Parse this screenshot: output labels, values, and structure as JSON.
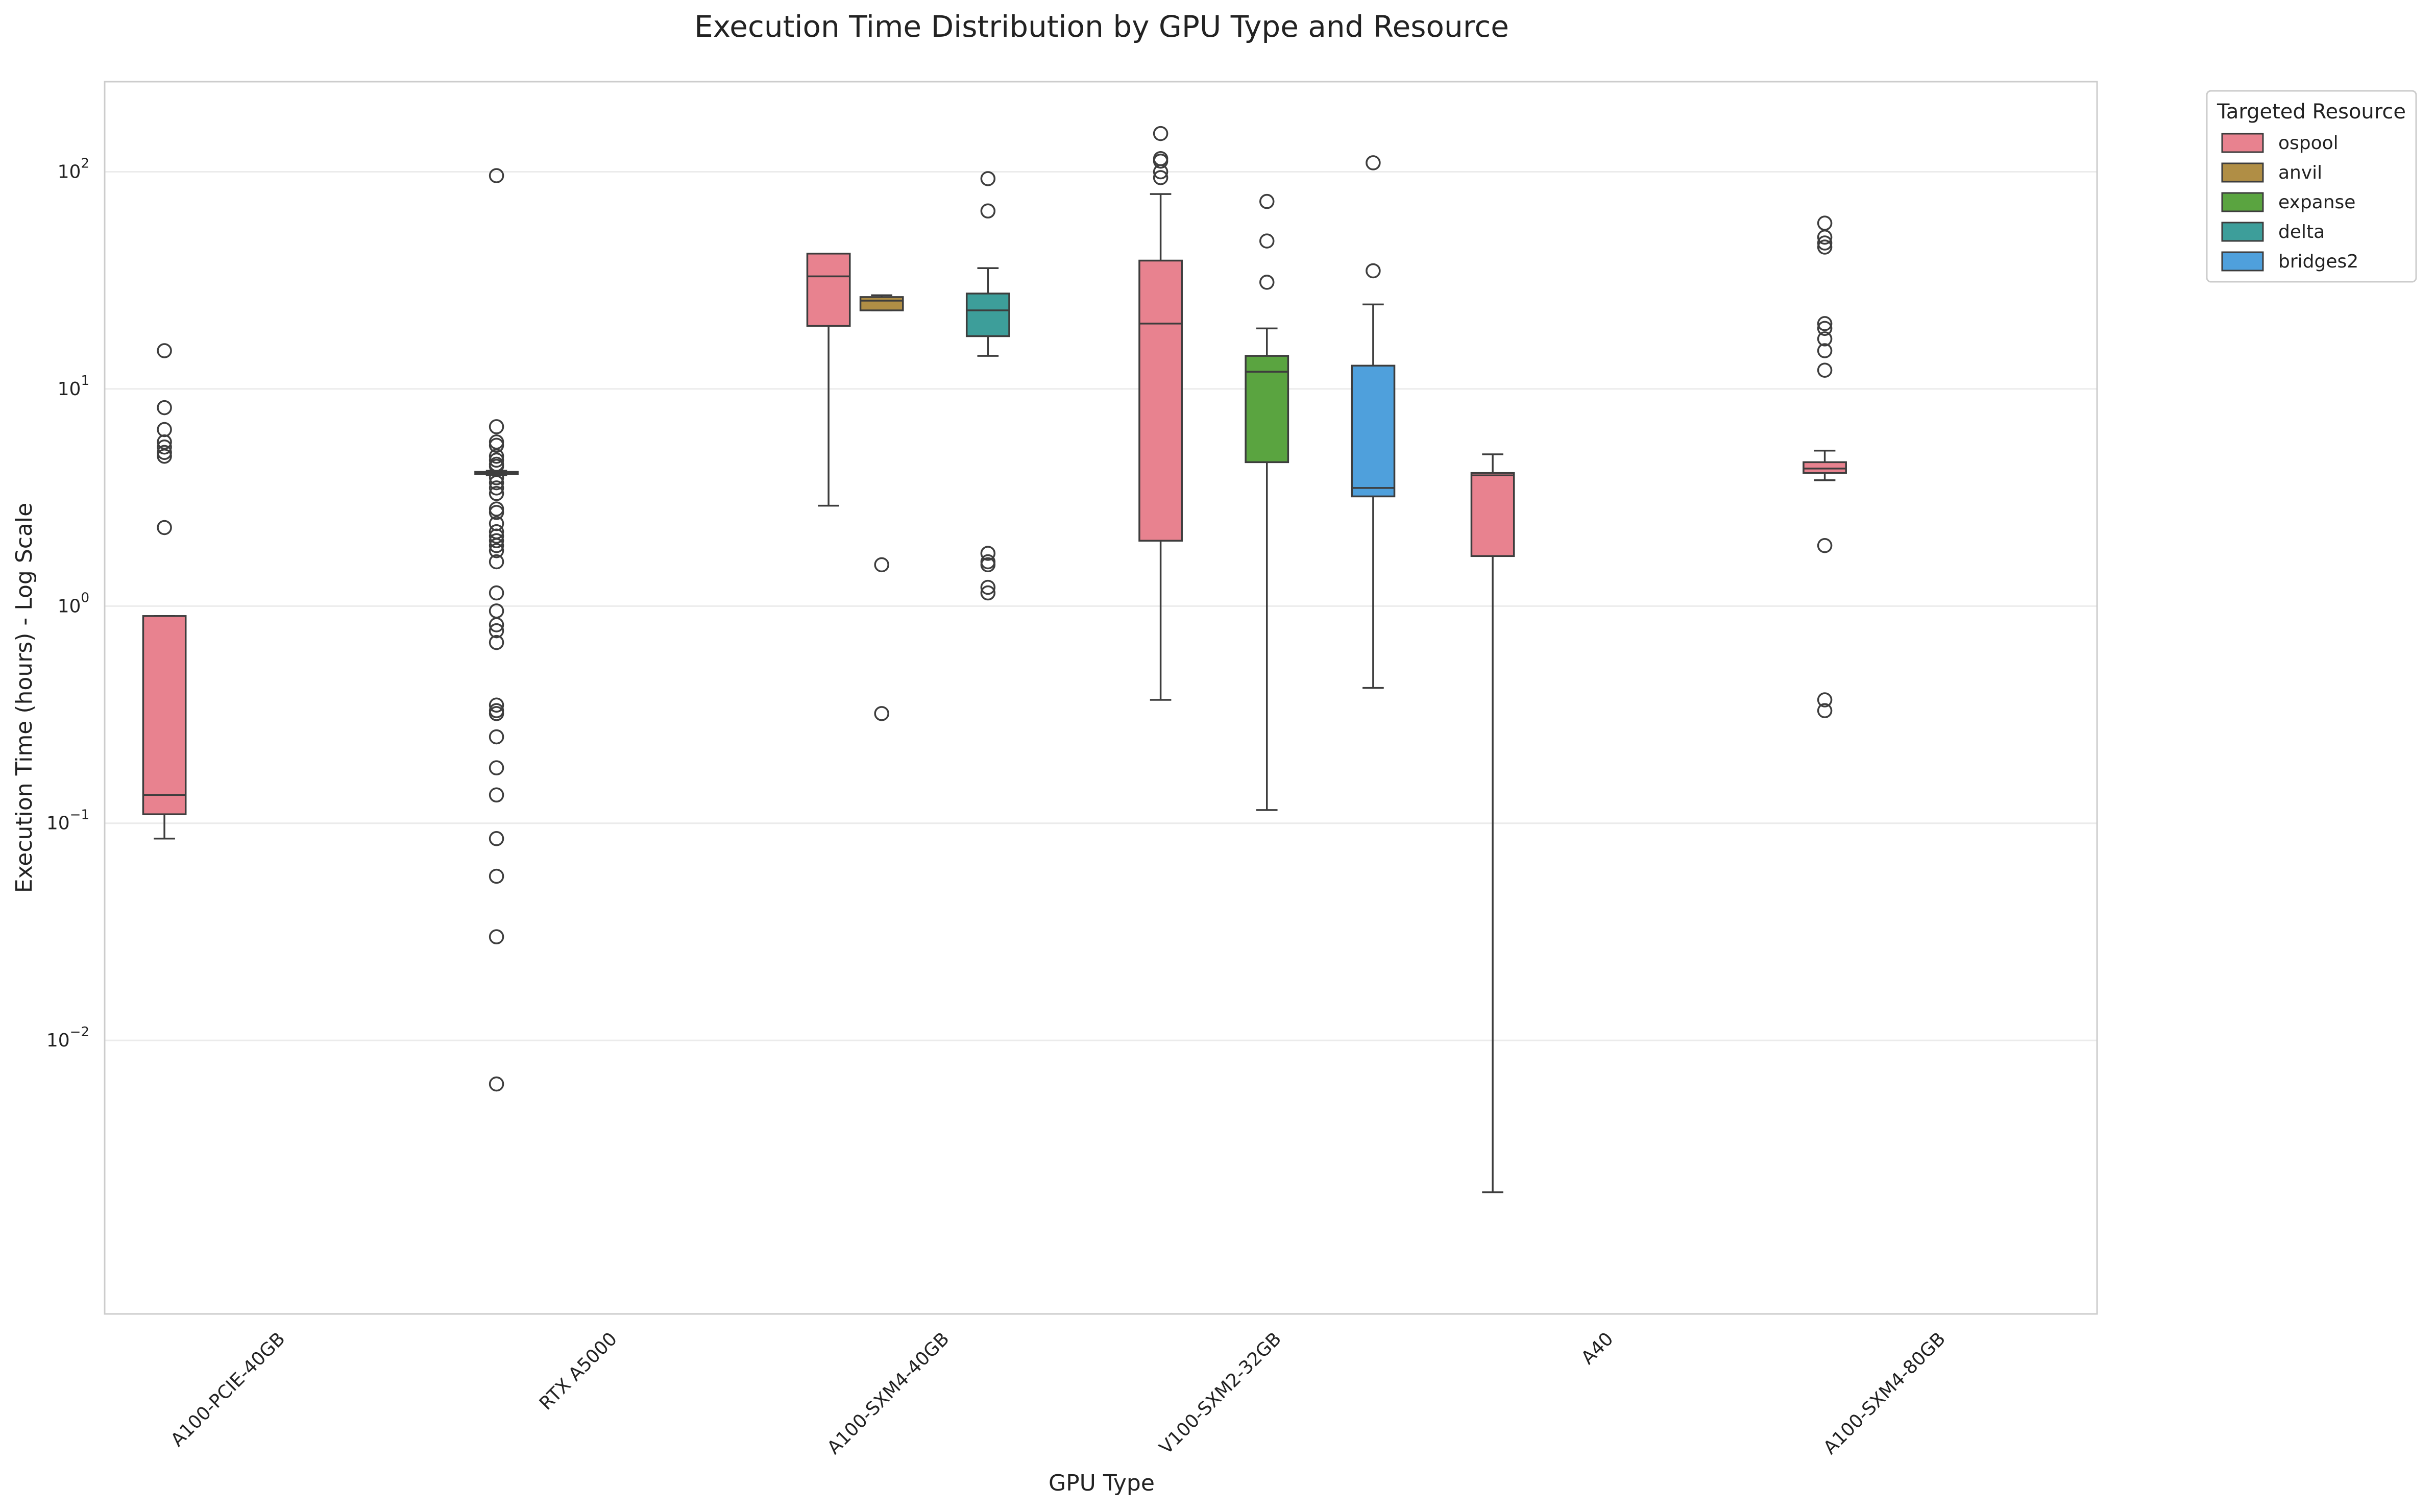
{
  "chart_data": {
    "type": "box",
    "title": "Execution Time Distribution by GPU Type and Resource",
    "xlabel": "GPU Type",
    "ylabel": "Execution Time (hours) - Log Scale",
    "yscale": "log",
    "ylim": [
      0.00055,
      260
    ],
    "grid": "horizontal",
    "categories": [
      "A100-PCIE-40GB",
      "RTX A5000",
      "A100-SXM4-40GB",
      "V100-SXM2-32GB",
      "A40",
      "A100-SXM4-80GB"
    ],
    "y_ticks": [
      {
        "base": "10",
        "exp": "−2",
        "value": 0.01
      },
      {
        "base": "10",
        "exp": "−1",
        "value": 0.1
      },
      {
        "base": "10",
        "exp": "0",
        "value": 1
      },
      {
        "base": "10",
        "exp": "1",
        "value": 10
      },
      {
        "base": "10",
        "exp": "2",
        "value": 100
      }
    ],
    "legend": {
      "title": "Targeted Resource",
      "placement": "outside-top-right",
      "entries": [
        {
          "name": "ospool",
          "color": "#e8828f"
        },
        {
          "name": "anvil",
          "color": "#b08e45"
        },
        {
          "name": "expanse",
          "color": "#5aa440"
        },
        {
          "name": "delta",
          "color": "#3d9e9a"
        },
        {
          "name": "bridges2",
          "color": "#4fa0dc"
        }
      ]
    },
    "hue_order": [
      "ospool",
      "anvil",
      "expanse",
      "delta",
      "bridges2"
    ],
    "boxes": [
      {
        "category": "A100-PCIE-40GB",
        "resource": "ospool",
        "whisker_low": 0.085,
        "q1": 0.11,
        "median": 0.135,
        "q3": 0.9,
        "whisker_high": 0.9,
        "outliers": [
          15,
          8.2,
          6.5,
          5.7,
          5.4,
          5.1,
          4.9,
          2.3
        ]
      },
      {
        "category": "RTX A5000",
        "resource": "ospool",
        "whisker_low": 4.0,
        "q1": 4.05,
        "median": 4.1,
        "q3": 4.15,
        "whisker_high": 4.2,
        "outliers": [
          96,
          6.7,
          5.7,
          5.5,
          4.9,
          4.7,
          4.5,
          4.4,
          3.9,
          3.7,
          3.5,
          3.3,
          2.8,
          2.7,
          2.4,
          2.2,
          2.1,
          2.0,
          1.9,
          1.8,
          1.6,
          1.15,
          0.95,
          0.82,
          0.77,
          0.68,
          0.35,
          0.33,
          0.32,
          0.25,
          0.18,
          0.135,
          0.085,
          0.057,
          0.03,
          0.0063
        ]
      },
      {
        "category": "A100-SXM4-40GB",
        "resource": "ospool",
        "whisker_low": 2.9,
        "q1": 19.5,
        "median": 33,
        "q3": 42,
        "whisker_high": 42,
        "outliers": []
      },
      {
        "category": "A100-SXM4-40GB",
        "resource": "anvil",
        "whisker_low": 23,
        "q1": 23,
        "median": 25.5,
        "q3": 26.5,
        "whisker_high": 27,
        "outliers": [
          1.55,
          0.32
        ]
      },
      {
        "category": "A100-SXM4-40GB",
        "resource": "delta",
        "whisker_low": 14.2,
        "q1": 17.5,
        "median": 23,
        "q3": 27.5,
        "whisker_high": 36,
        "outliers": [
          93,
          66,
          1.75,
          1.6,
          1.55,
          1.22,
          1.15
        ]
      },
      {
        "category": "V100-SXM2-32GB",
        "resource": "ospool",
        "whisker_low": 0.37,
        "q1": 2.0,
        "median": 20,
        "q3": 39,
        "whisker_high": 79,
        "outliers": [
          150,
          115,
          112,
          100,
          94
        ]
      },
      {
        "category": "V100-SXM2-32GB",
        "resource": "expanse",
        "whisker_low": 0.115,
        "q1": 4.6,
        "median": 12,
        "q3": 14.2,
        "whisker_high": 19,
        "outliers": [
          73,
          48,
          31
        ]
      },
      {
        "category": "V100-SXM2-32GB",
        "resource": "bridges2",
        "whisker_low": 0.42,
        "q1": 3.2,
        "median": 3.5,
        "q3": 12.8,
        "whisker_high": 24.5,
        "outliers": [
          110,
          35
        ]
      },
      {
        "category": "A40",
        "resource": "ospool",
        "whisker_low": 0.002,
        "q1": 1.7,
        "median": 4.0,
        "q3": 4.1,
        "whisker_high": 5.0,
        "outliers": []
      },
      {
        "category": "A100-SXM4-80GB",
        "resource": "ospool",
        "whisker_low": 3.8,
        "q1": 4.1,
        "median": 4.3,
        "q3": 4.6,
        "whisker_high": 5.2,
        "outliers": [
          58,
          50,
          47,
          45,
          20,
          19,
          17,
          15,
          12.2,
          1.9,
          0.37,
          0.33
        ]
      }
    ]
  }
}
